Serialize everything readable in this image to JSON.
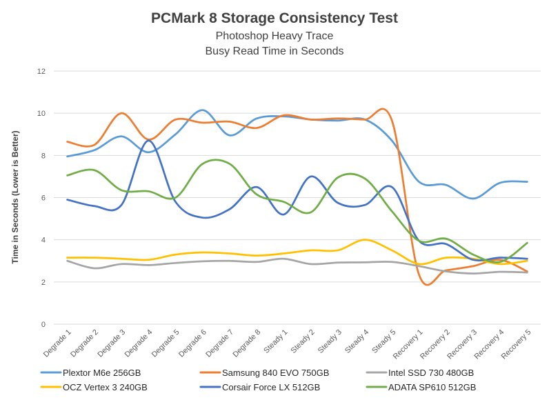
{
  "chart_data": {
    "type": "line",
    "title": "PCMark 8 Storage Consistency Test",
    "subtitle_lines": [
      "Photoshop Heavy Trace",
      "Busy Read Time in Seconds"
    ],
    "ylabel": "Time in Seconds  (Lower is Better)",
    "xlabel": "",
    "ylim": [
      0,
      12
    ],
    "yticks": [
      0,
      2,
      4,
      6,
      8,
      10,
      12
    ],
    "grid": true,
    "legend_position": "bottom",
    "smooth": true,
    "categories": [
      "Degrade 1",
      "Degrade 2",
      "Degrade 3",
      "Degrade 4",
      "Degrade 5",
      "Degrade 6",
      "Degrade 7",
      "Degrade 8",
      "Steady 1",
      "Steady 2",
      "Steady 3",
      "Steady 4",
      "Steady 5",
      "Recovery 1",
      "Recovery 2",
      "Recovery 3",
      "Recovery 4",
      "Recovery 5"
    ],
    "series": [
      {
        "name": "Plextor M6e 256GB",
        "color": "#5b9bd5",
        "values": [
          7.95,
          8.25,
          8.9,
          8.15,
          9.0,
          10.15,
          8.95,
          9.75,
          9.85,
          9.7,
          9.65,
          9.7,
          8.7,
          6.75,
          6.6,
          5.95,
          6.7,
          6.75
        ]
      },
      {
        "name": "Samsung 840 EVO 750GB",
        "color": "#ed7d31",
        "values": [
          8.65,
          8.5,
          10.0,
          8.75,
          9.7,
          9.55,
          9.6,
          9.3,
          9.9,
          9.7,
          9.75,
          9.7,
          9.65,
          2.35,
          2.55,
          2.75,
          3.05,
          2.5
        ]
      },
      {
        "name": "Intel SSD 730 480GB",
        "color": "#a5a5a5",
        "values": [
          3.0,
          2.65,
          2.85,
          2.8,
          2.9,
          2.98,
          3.0,
          2.95,
          3.1,
          2.85,
          2.92,
          2.93,
          2.95,
          2.75,
          2.5,
          2.4,
          2.48,
          2.45
        ]
      },
      {
        "name": "OCZ Vertex 3 240GB",
        "color": "#ffc000",
        "values": [
          3.15,
          3.15,
          3.1,
          3.05,
          3.3,
          3.4,
          3.35,
          3.25,
          3.35,
          3.5,
          3.5,
          4.0,
          3.5,
          2.85,
          3.15,
          3.1,
          2.85,
          3.0
        ]
      },
      {
        "name": "Corsair Force LX 512GB",
        "color": "#4472c4",
        "values": [
          5.9,
          5.6,
          5.65,
          8.7,
          5.8,
          5.05,
          5.45,
          6.5,
          5.2,
          7.0,
          5.75,
          5.65,
          6.5,
          3.95,
          3.8,
          3.05,
          3.15,
          3.1
        ]
      },
      {
        "name": "ADATA SP610 512GB",
        "color": "#70ad47",
        "values": [
          7.05,
          7.3,
          6.35,
          6.3,
          6.0,
          7.6,
          7.6,
          6.15,
          5.8,
          5.3,
          6.95,
          6.9,
          5.35,
          3.95,
          4.05,
          3.3,
          2.95,
          3.85
        ]
      }
    ]
  }
}
